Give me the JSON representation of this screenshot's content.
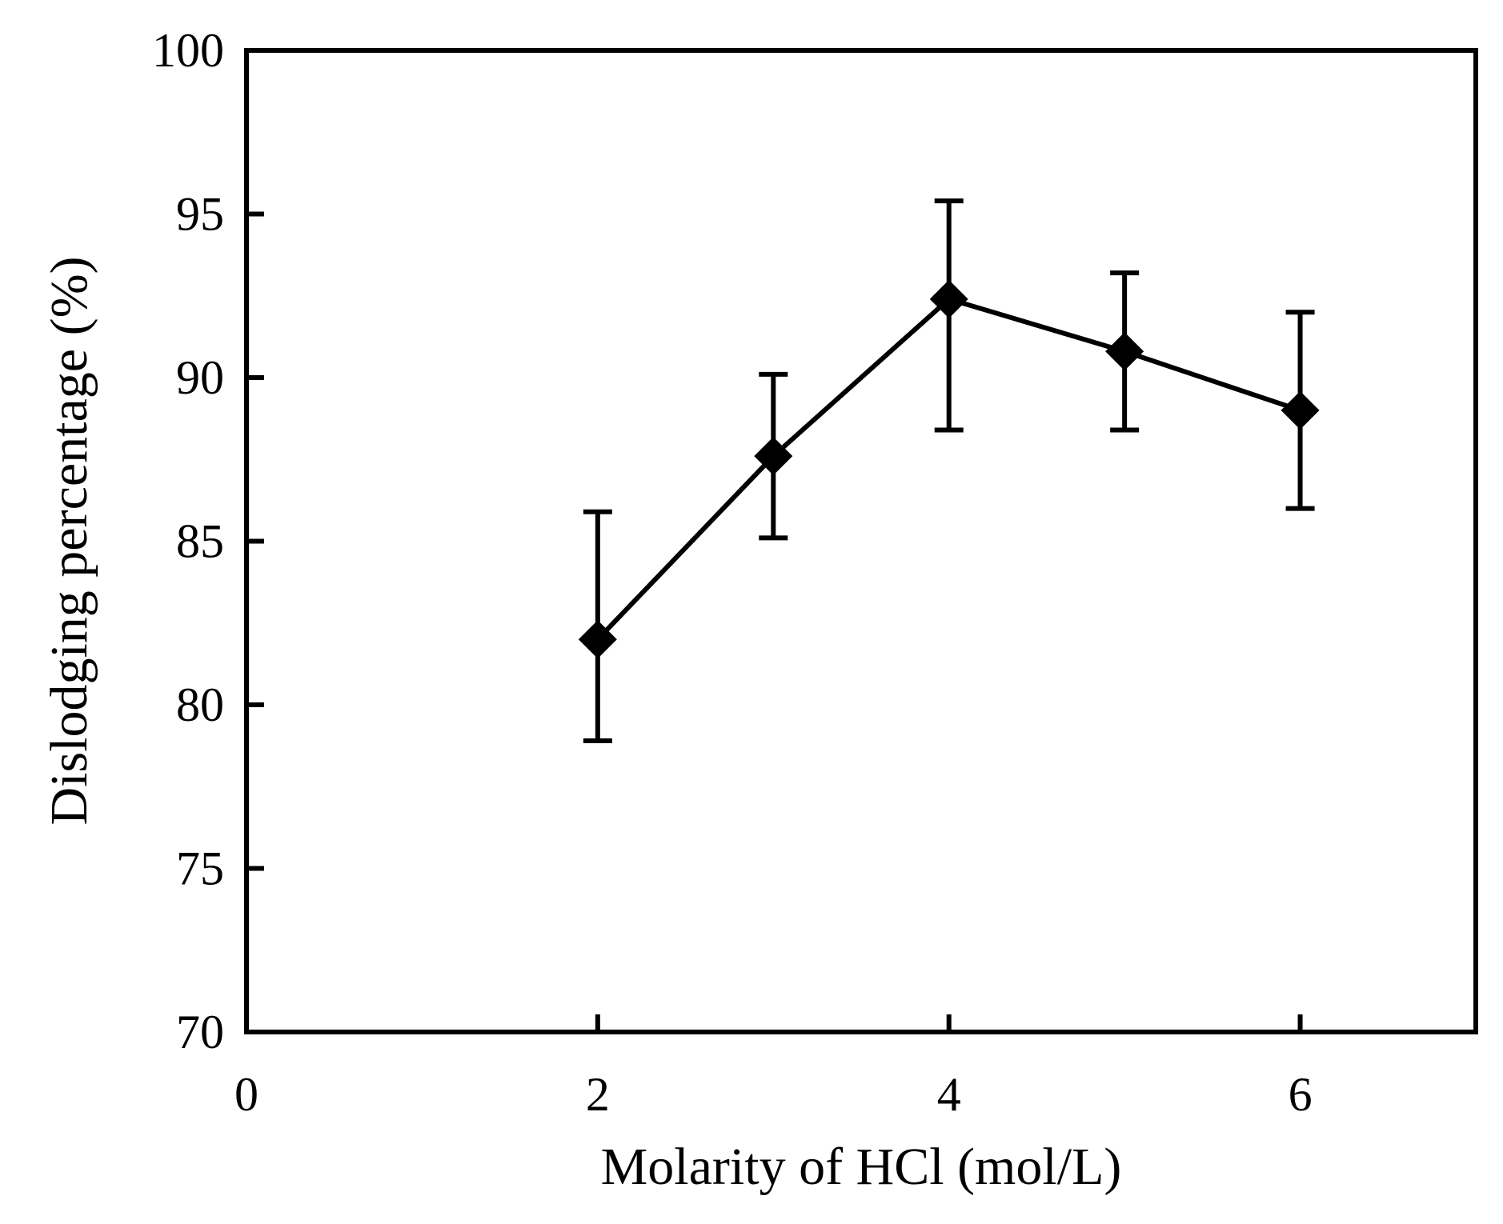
{
  "chart_data": {
    "type": "line",
    "title": "",
    "xlabel": "Molarity of HCl (mol/L)",
    "ylabel": "Dislodging percentage (%)",
    "xlim": [
      0,
      7
    ],
    "ylim": [
      70,
      100
    ],
    "x_ticks": [
      0,
      2,
      4,
      6
    ],
    "x_tick_labels": [
      "0",
      "2",
      "4",
      "6"
    ],
    "y_ticks": [
      70,
      75,
      80,
      85,
      90,
      95,
      100
    ],
    "y_tick_labels": [
      "70",
      "75",
      "80",
      "85",
      "90",
      "95",
      "100"
    ],
    "grid": false,
    "legend": null,
    "marker": "diamond",
    "color": "#000000",
    "series": [
      {
        "name": "Dislodging percentage",
        "x": [
          2,
          3,
          4,
          5,
          6
        ],
        "y": [
          82.0,
          87.6,
          92.4,
          90.8,
          89.0
        ],
        "error_upper": [
          85.9,
          90.1,
          95.4,
          93.2,
          92.0
        ],
        "error_lower": [
          78.9,
          85.1,
          88.4,
          88.4,
          86.0
        ]
      }
    ]
  }
}
